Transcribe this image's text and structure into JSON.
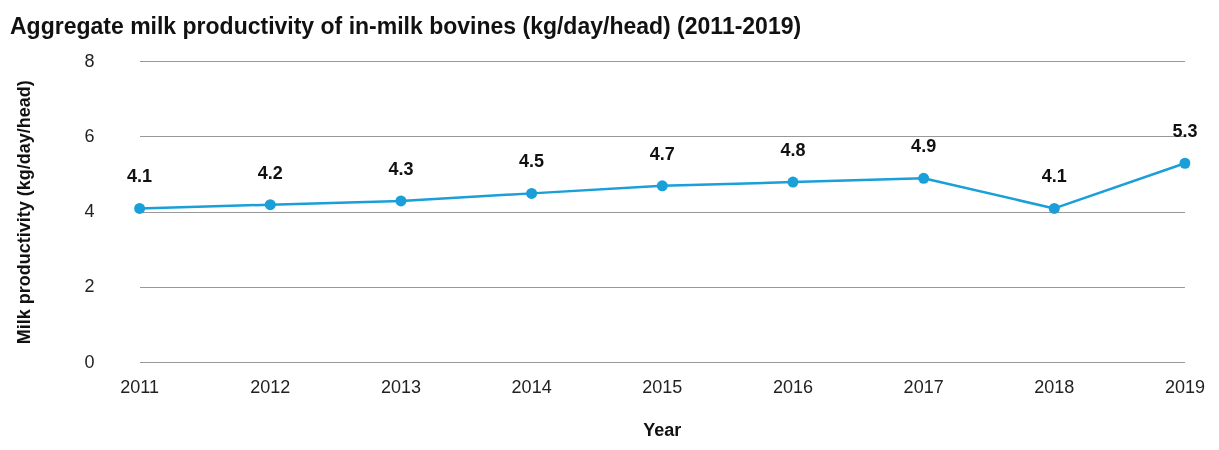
{
  "chart_data": {
    "type": "line",
    "title": "Aggregate milk productivity of in-milk bovines (kg/day/head) (2011-2019)",
    "xlabel": "Year",
    "ylabel": "Milk productivity (kg/day/head)",
    "categories": [
      "2011",
      "2012",
      "2013",
      "2014",
      "2015",
      "2016",
      "2017",
      "2018",
      "2019"
    ],
    "series": [
      {
        "color": "#1a9fd8",
        "values": [
          4.1,
          4.2,
          4.3,
          4.5,
          4.7,
          4.8,
          4.9,
          4.1,
          5.3
        ],
        "value_labels": [
          "4.1",
          "4.2",
          "4.3",
          "4.5",
          "4.7",
          "4.8",
          "4.9",
          "4.1",
          "5.3"
        ]
      }
    ],
    "ylim": [
      0,
      8
    ],
    "yticks": [
      0,
      2,
      4,
      6,
      8
    ],
    "grid": "y",
    "legend": false,
    "marker": "circle",
    "line_style": "solid"
  }
}
